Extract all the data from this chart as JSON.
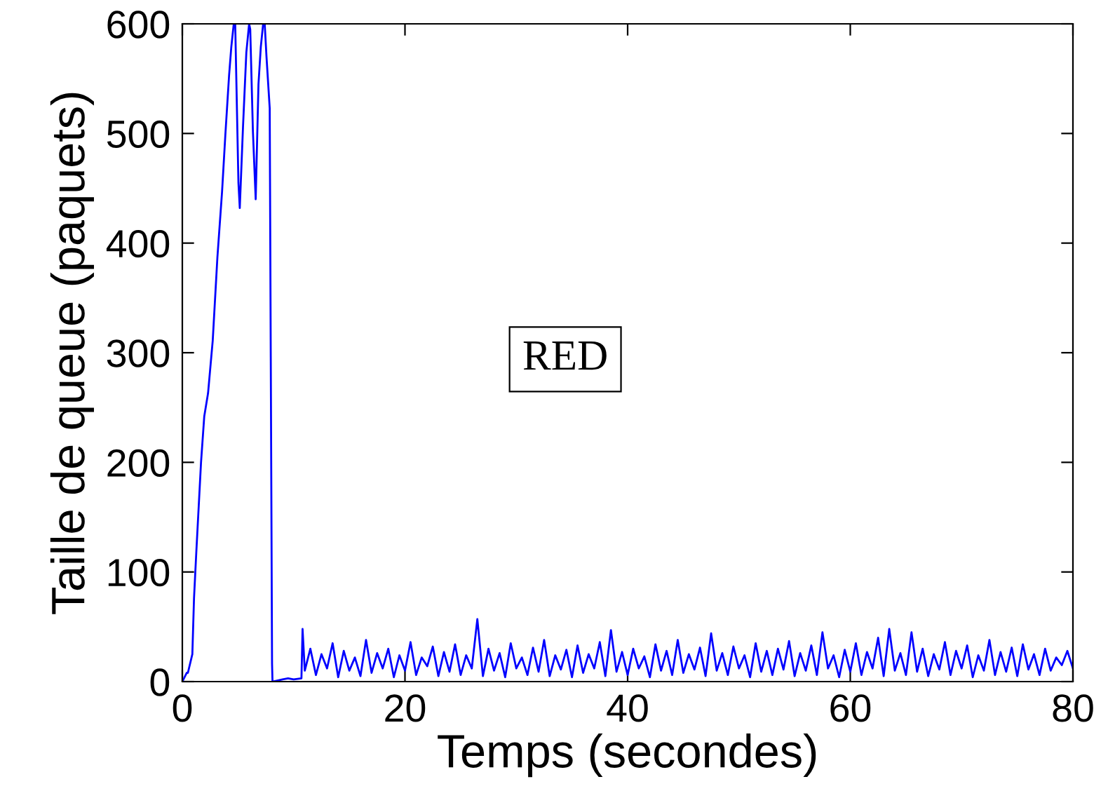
{
  "chart_data": {
    "type": "line",
    "xlabel": "Temps (secondes)",
    "ylabel": "Taille de queue (paquets)",
    "annotations": [
      "RED"
    ],
    "xlim": [
      0,
      80
    ],
    "ylim": [
      0,
      600
    ],
    "xticks": [
      0,
      20,
      40,
      60,
      80
    ],
    "yticks": [
      0,
      100,
      200,
      300,
      400,
      500,
      600
    ],
    "grid": false,
    "legend": false,
    "series": [
      {
        "color": "#0000ff",
        "x": [
          0.0,
          0.4,
          0.5,
          0.9,
          1.05,
          1.26,
          1.68,
          1.97,
          2.31,
          2.73,
          3.15,
          3.57,
          3.86,
          4.2,
          4.4,
          4.62,
          4.75,
          5.04,
          5.16,
          5.45,
          5.75,
          6.0,
          6.1,
          6.34,
          6.59,
          6.84,
          7.05,
          7.26,
          7.4,
          7.56,
          7.85,
          8.06,
          8.1,
          9.0,
          9.5,
          10.0,
          10.7,
          10.8,
          11.0,
          11.5,
          12.0,
          12.5,
          13.0,
          13.5,
          14.0,
          14.5,
          15.0,
          15.5,
          16.0,
          16.5,
          17.0,
          17.5,
          18.0,
          18.5,
          19.0,
          19.5,
          20.0,
          20.5,
          21.0,
          21.5,
          22.0,
          22.5,
          23.0,
          23.5,
          24.0,
          24.5,
          25.0,
          25.5,
          26.0,
          26.5,
          27.0,
          27.5,
          28.0,
          28.5,
          29.0,
          29.5,
          30.0,
          30.5,
          31.0,
          31.5,
          32.0,
          32.5,
          33.0,
          33.5,
          34.0,
          34.5,
          35.0,
          35.5,
          36.0,
          36.5,
          37.0,
          37.5,
          38.0,
          38.5,
          39.0,
          39.5,
          40.0,
          40.5,
          41.0,
          41.5,
          42.0,
          42.5,
          43.0,
          43.5,
          44.0,
          44.5,
          45.0,
          45.5,
          46.0,
          46.5,
          47.0,
          47.5,
          48.0,
          48.5,
          49.0,
          49.5,
          50.0,
          50.5,
          51.0,
          51.5,
          52.0,
          52.5,
          53.0,
          53.5,
          54.0,
          54.5,
          55.0,
          55.5,
          56.0,
          56.5,
          57.0,
          57.5,
          58.0,
          58.5,
          59.0,
          59.5,
          60.0,
          60.5,
          61.0,
          61.5,
          62.0,
          62.5,
          63.0,
          63.5,
          64.0,
          64.5,
          65.0,
          65.5,
          66.0,
          66.5,
          67.0,
          67.5,
          68.0,
          68.5,
          69.0,
          69.5,
          70.0,
          70.5,
          71.0,
          71.5,
          72.0,
          72.5,
          73.0,
          73.5,
          74.0,
          74.5,
          75.0,
          75.5,
          76.0,
          76.5,
          77.0,
          77.5,
          78.0,
          78.5,
          79.0,
          79.5,
          80.0
        ],
        "values": [
          0,
          8,
          8,
          25,
          76,
          119,
          200,
          242,
          263,
          311,
          387,
          447,
          498,
          553,
          579,
          600,
          600,
          455,
          432,
          506,
          574,
          600,
          595,
          502,
          440,
          545,
          579,
          600,
          600,
          570,
          523,
          16,
          0,
          2,
          3,
          2,
          3,
          48,
          10,
          30,
          6,
          25,
          12,
          35,
          4,
          28,
          10,
          22,
          5,
          38,
          8,
          26,
          12,
          30,
          4,
          24,
          10,
          36,
          6,
          22,
          14,
          32,
          5,
          27,
          9,
          34,
          6,
          24,
          12,
          57,
          5,
          30,
          10,
          26,
          4,
          35,
          12,
          22,
          6,
          31,
          9,
          38,
          5,
          24,
          11,
          29,
          4,
          33,
          8,
          25,
          12,
          36,
          5,
          47,
          9,
          27,
          6,
          30,
          12,
          23,
          4,
          34,
          10,
          28,
          6,
          38,
          8,
          25,
          11,
          31,
          5,
          44,
          10,
          26,
          6,
          32,
          12,
          24,
          4,
          35,
          9,
          28,
          6,
          30,
          11,
          37,
          5,
          26,
          10,
          33,
          6,
          45,
          12,
          24,
          4,
          29,
          9,
          35,
          6,
          27,
          12,
          40,
          5,
          48,
          10,
          26,
          6,
          45,
          9,
          30,
          5,
          25,
          11,
          36,
          6,
          28,
          12,
          33,
          4,
          24,
          10,
          38,
          6,
          27,
          9,
          31,
          5,
          34,
          11,
          25,
          6,
          30,
          10,
          22,
          15,
          28,
          12
        ]
      }
    ]
  }
}
